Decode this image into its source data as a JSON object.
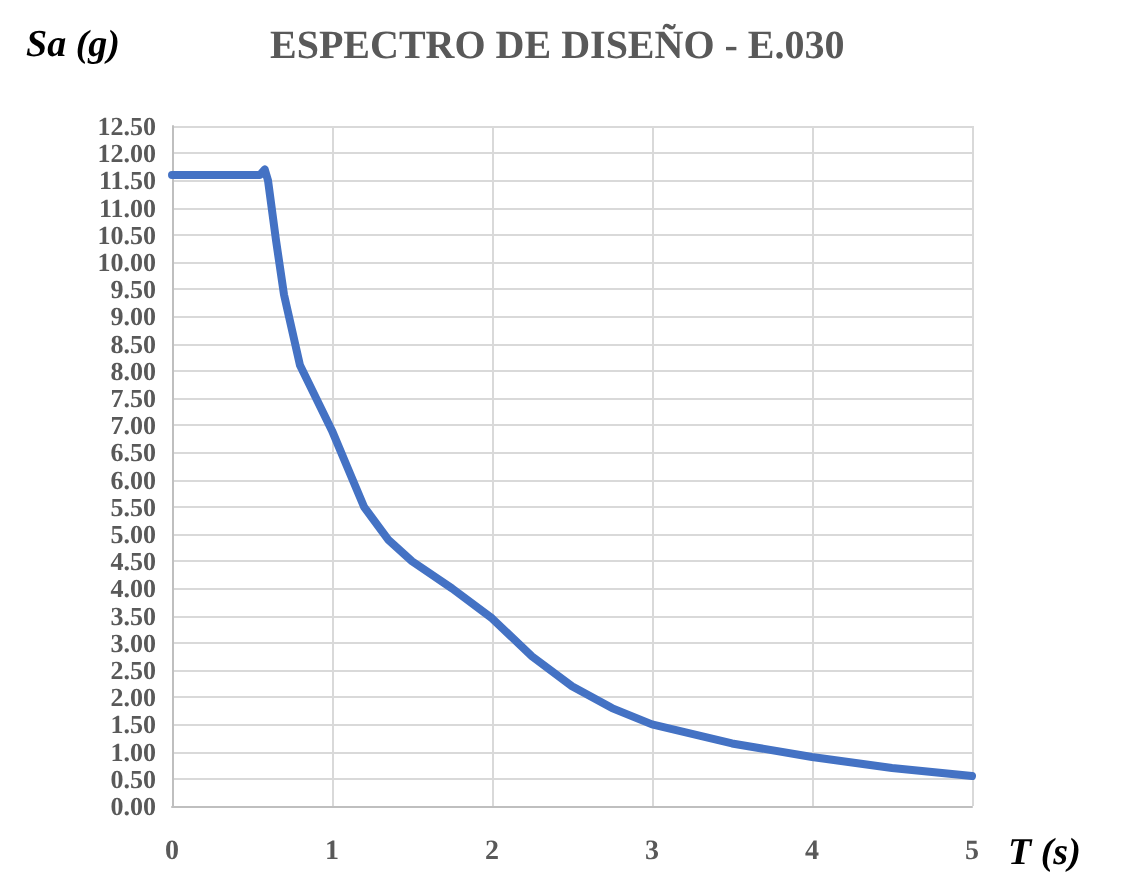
{
  "chart_data": {
    "type": "line",
    "title": "ESPECTRO DE DISEÑO - E.030",
    "ylabel": "Sa (g)",
    "xlabel": "T (s)",
    "x": [
      0,
      0.2,
      0.4,
      0.55,
      0.58,
      0.6,
      0.65,
      0.7,
      0.8,
      0.9,
      1.0,
      1.1,
      1.2,
      1.35,
      1.5,
      1.75,
      2.0,
      2.25,
      2.5,
      2.75,
      3.0,
      3.5,
      4.0,
      4.5,
      5.0
    ],
    "series": [
      {
        "color": "#4472c4",
        "values": [
          11.6,
          11.6,
          11.6,
          11.6,
          11.7,
          11.5,
          10.4,
          9.4,
          8.1,
          7.5,
          6.9,
          6.2,
          5.5,
          4.9,
          4.5,
          4.0,
          3.45,
          2.75,
          2.2,
          1.8,
          1.5,
          1.15,
          0.9,
          0.7,
          0.55
        ]
      }
    ],
    "xlim": [
      0,
      5
    ],
    "xticks": [
      0,
      1,
      2,
      3,
      4,
      5
    ],
    "ylim": [
      0,
      12.5
    ],
    "yticks": [
      {
        "value": 0,
        "label": "0.00"
      },
      {
        "value": 0.5,
        "label": "0.50"
      },
      {
        "value": 1,
        "label": "1.00"
      },
      {
        "value": 1.5,
        "label": "1.50"
      },
      {
        "value": 2,
        "label": "2.00"
      },
      {
        "value": 2.5,
        "label": "2.50"
      },
      {
        "value": 3,
        "label": "3.00"
      },
      {
        "value": 3.5,
        "label": "3.50"
      },
      {
        "value": 4,
        "label": "4.00"
      },
      {
        "value": 4.5,
        "label": "4.50"
      },
      {
        "value": 5,
        "label": "5.00"
      },
      {
        "value": 5.5,
        "label": "5.50"
      },
      {
        "value": 6,
        "label": "6.00"
      },
      {
        "value": 6.5,
        "label": "6.50"
      },
      {
        "value": 7,
        "label": "7.00"
      },
      {
        "value": 7.5,
        "label": "7.50"
      },
      {
        "value": 8,
        "label": "8.00"
      },
      {
        "value": 8.5,
        "label": "8.50"
      },
      {
        "value": 9,
        "label": "9.00"
      },
      {
        "value": 9.5,
        "label": "9.50"
      },
      {
        "value": 10,
        "label": "10.00"
      },
      {
        "value": 10.5,
        "label": "10.50"
      },
      {
        "value": 11,
        "label": "11.00"
      },
      {
        "value": 11.5,
        "label": "11.50"
      },
      {
        "value": 12,
        "label": "12.00"
      },
      {
        "value": 12.5,
        "label": "12.50"
      }
    ],
    "grid": true,
    "marker": "none",
    "line_style": "solid"
  }
}
